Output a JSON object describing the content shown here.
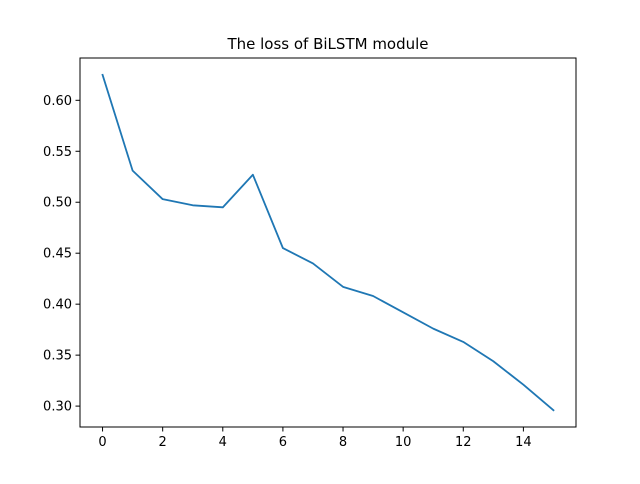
{
  "chart_data": {
    "type": "line",
    "title": "The loss of BiLSTM module",
    "xlabel": "",
    "ylabel": "",
    "xlim": [
      -0.75,
      15.75
    ],
    "ylim": [
      0.2795,
      0.6415
    ],
    "xticks": [
      0,
      2,
      4,
      6,
      8,
      10,
      12,
      14
    ],
    "xtick_labels": [
      "0",
      "2",
      "4",
      "6",
      "8",
      "10",
      "12",
      "14"
    ],
    "yticks": [
      0.3,
      0.35,
      0.4,
      0.45,
      0.5,
      0.55,
      0.6
    ],
    "ytick_labels": [
      "0.30",
      "0.35",
      "0.40",
      "0.45",
      "0.50",
      "0.55",
      "0.60"
    ],
    "grid": false,
    "legend": "none",
    "series": [
      {
        "color": "#1f77b4",
        "x": [
          0,
          1,
          2,
          3,
          4,
          5,
          6,
          7,
          8,
          9,
          10,
          11,
          12,
          13,
          14,
          15
        ],
        "y": [
          0.625,
          0.531,
          0.503,
          0.497,
          0.495,
          0.527,
          0.455,
          0.44,
          0.417,
          0.408,
          0.392,
          0.376,
          0.363,
          0.344,
          0.321,
          0.296
        ]
      }
    ]
  }
}
